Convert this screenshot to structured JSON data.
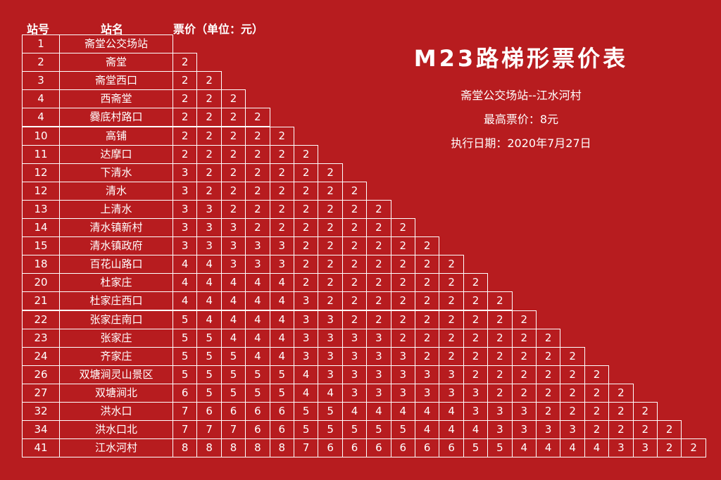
{
  "headers": {
    "station_no": "站号",
    "station_name": "站名",
    "fare_unit": "票价（单位：元）"
  },
  "title": "M23路梯形票价表",
  "route": "斋堂公交场站--江水河村",
  "max_fare": "最高票价：8元",
  "effective_date": "执行日期：2020年7月27日",
  "rows": [
    {
      "no": "1",
      "name": "斋堂公交场站",
      "fares": []
    },
    {
      "no": "2",
      "name": "斋堂",
      "fares": [
        "2"
      ]
    },
    {
      "no": "3",
      "name": "斋堂西口",
      "fares": [
        "2",
        "2"
      ]
    },
    {
      "no": "4",
      "name": "西斋堂",
      "fares": [
        "2",
        "2",
        "2"
      ]
    },
    {
      "no": "4",
      "name": "爨底村路口",
      "fares": [
        "2",
        "2",
        "2",
        "2"
      ]
    },
    {
      "no": "10",
      "name": "高铺",
      "fares": [
        "2",
        "2",
        "2",
        "2",
        "2"
      ]
    },
    {
      "no": "11",
      "name": "达摩口",
      "fares": [
        "2",
        "2",
        "2",
        "2",
        "2",
        "2"
      ]
    },
    {
      "no": "12",
      "name": "下清水",
      "fares": [
        "3",
        "2",
        "2",
        "2",
        "2",
        "2",
        "2"
      ]
    },
    {
      "no": "12",
      "name": "清水",
      "fares": [
        "3",
        "2",
        "2",
        "2",
        "2",
        "2",
        "2",
        "2"
      ]
    },
    {
      "no": "13",
      "name": "上清水",
      "fares": [
        "3",
        "3",
        "2",
        "2",
        "2",
        "2",
        "2",
        "2",
        "2"
      ]
    },
    {
      "no": "14",
      "name": "清水镇新村",
      "fares": [
        "3",
        "3",
        "3",
        "2",
        "2",
        "2",
        "2",
        "2",
        "2",
        "2"
      ]
    },
    {
      "no": "15",
      "name": "清水镇政府",
      "fares": [
        "3",
        "3",
        "3",
        "3",
        "3",
        "2",
        "2",
        "2",
        "2",
        "2",
        "2"
      ]
    },
    {
      "no": "18",
      "name": "百花山路口",
      "fares": [
        "4",
        "4",
        "3",
        "3",
        "3",
        "2",
        "2",
        "2",
        "2",
        "2",
        "2",
        "2"
      ]
    },
    {
      "no": "20",
      "name": "杜家庄",
      "fares": [
        "4",
        "4",
        "4",
        "4",
        "4",
        "2",
        "2",
        "2",
        "2",
        "2",
        "2",
        "2",
        "2"
      ]
    },
    {
      "no": "21",
      "name": "杜家庄西口",
      "fares": [
        "4",
        "4",
        "4",
        "4",
        "4",
        "3",
        "2",
        "2",
        "2",
        "2",
        "2",
        "2",
        "2",
        "2"
      ]
    },
    {
      "no": "22",
      "name": "张家庄南口",
      "fares": [
        "5",
        "4",
        "4",
        "4",
        "4",
        "3",
        "3",
        "2",
        "2",
        "2",
        "2",
        "2",
        "2",
        "2",
        "2"
      ]
    },
    {
      "no": "23",
      "name": "张家庄",
      "fares": [
        "5",
        "5",
        "4",
        "4",
        "4",
        "3",
        "3",
        "3",
        "3",
        "2",
        "2",
        "2",
        "2",
        "2",
        "2",
        "2"
      ]
    },
    {
      "no": "24",
      "name": "齐家庄",
      "fares": [
        "5",
        "5",
        "5",
        "4",
        "4",
        "3",
        "3",
        "3",
        "3",
        "3",
        "2",
        "2",
        "2",
        "2",
        "2",
        "2",
        "2"
      ]
    },
    {
      "no": "26",
      "name": "双塘涧灵山景区",
      "fares": [
        "5",
        "5",
        "5",
        "5",
        "5",
        "4",
        "3",
        "3",
        "3",
        "3",
        "3",
        "3",
        "2",
        "2",
        "2",
        "2",
        "2",
        "2"
      ]
    },
    {
      "no": "27",
      "name": "双塘涧北",
      "fares": [
        "6",
        "5",
        "5",
        "5",
        "5",
        "4",
        "4",
        "3",
        "3",
        "3",
        "3",
        "3",
        "3",
        "2",
        "2",
        "2",
        "2",
        "2",
        "2"
      ]
    },
    {
      "no": "32",
      "name": "洪水口",
      "fares": [
        "7",
        "6",
        "6",
        "6",
        "6",
        "5",
        "5",
        "4",
        "4",
        "4",
        "4",
        "4",
        "3",
        "3",
        "3",
        "2",
        "2",
        "2",
        "2",
        "2"
      ]
    },
    {
      "no": "34",
      "name": "洪水口北",
      "fares": [
        "7",
        "7",
        "7",
        "6",
        "6",
        "5",
        "5",
        "5",
        "5",
        "5",
        "4",
        "4",
        "4",
        "3",
        "3",
        "3",
        "3",
        "2",
        "2",
        "2",
        "2"
      ]
    },
    {
      "no": "41",
      "name": "江水河村",
      "fares": [
        "8",
        "8",
        "8",
        "8",
        "8",
        "7",
        "6",
        "6",
        "6",
        "6",
        "6",
        "6",
        "5",
        "5",
        "4",
        "4",
        "4",
        "4",
        "3",
        "3",
        "2",
        "2"
      ]
    }
  ]
}
